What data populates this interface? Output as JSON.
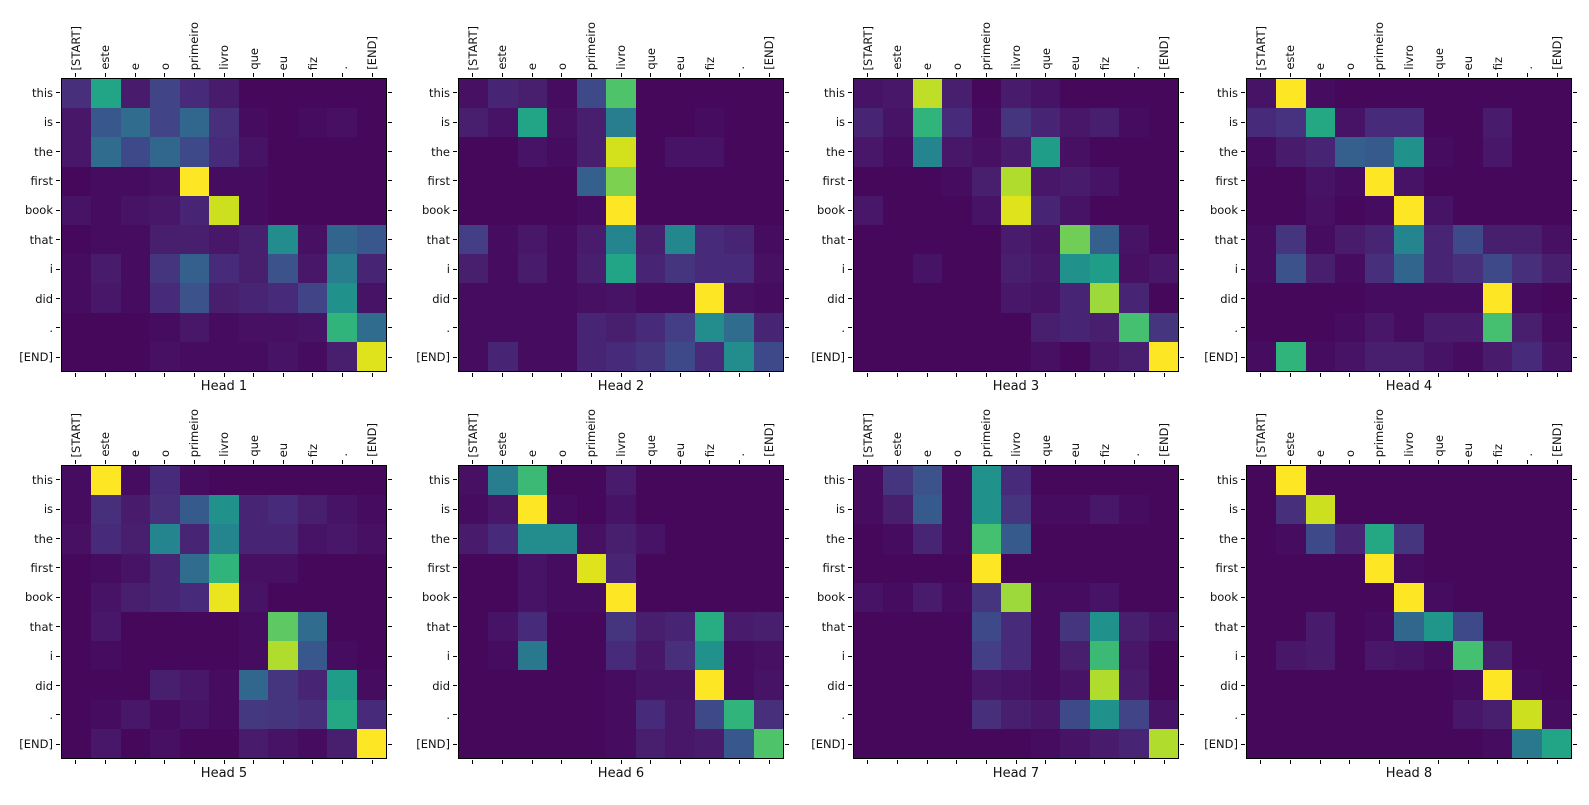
{
  "figure": {
    "background": "#ffffff",
    "plot_background": "#440154",
    "spine_color": "#000000",
    "text_color": "#111111"
  },
  "chart_data": {
    "type": "heatmap",
    "colormap": "viridis",
    "value_range": [
      0,
      1
    ],
    "legend": "none",
    "grid": "off",
    "x_tokens": [
      "[START]",
      "este",
      "e",
      "o",
      "primeiro",
      "livro",
      "que",
      "eu",
      "fiz",
      ".",
      "[END]"
    ],
    "y_tokens": [
      "this",
      "is",
      "the",
      "first",
      "book",
      "that",
      "i",
      "did",
      ".",
      "[END]"
    ],
    "viridis_stops": [
      "#440154",
      "#48186a",
      "#472d7b",
      "#424086",
      "#3b528b",
      "#33638d",
      "#2c728e",
      "#26828e",
      "#21918c",
      "#1fa088",
      "#28ae80",
      "#3fbc73",
      "#5ec962",
      "#84d44b",
      "#addc30",
      "#d8e219",
      "#fde725"
    ],
    "heads": [
      {
        "title": "Head 1",
        "values": [
          [
            0.13,
            0.58,
            0.07,
            0.2,
            0.12,
            0.07,
            0.02,
            0.02,
            0.02,
            0.02,
            0.02
          ],
          [
            0.06,
            0.27,
            0.35,
            0.2,
            0.33,
            0.13,
            0.03,
            0.02,
            0.03,
            0.04,
            0.02
          ],
          [
            0.06,
            0.35,
            0.22,
            0.33,
            0.22,
            0.12,
            0.05,
            0.02,
            0.02,
            0.02,
            0.02
          ],
          [
            0.02,
            0.03,
            0.03,
            0.04,
            1.0,
            0.03,
            0.03,
            0.02,
            0.02,
            0.02,
            0.02
          ],
          [
            0.05,
            0.03,
            0.05,
            0.06,
            0.1,
            0.92,
            0.03,
            0.02,
            0.02,
            0.02,
            0.02
          ],
          [
            0.02,
            0.03,
            0.03,
            0.08,
            0.08,
            0.06,
            0.08,
            0.48,
            0.04,
            0.32,
            0.27
          ],
          [
            0.03,
            0.07,
            0.03,
            0.15,
            0.3,
            0.12,
            0.08,
            0.25,
            0.06,
            0.42,
            0.1
          ],
          [
            0.03,
            0.06,
            0.03,
            0.12,
            0.25,
            0.08,
            0.1,
            0.12,
            0.2,
            0.5,
            0.05
          ],
          [
            0.02,
            0.02,
            0.02,
            0.03,
            0.06,
            0.03,
            0.04,
            0.04,
            0.05,
            0.65,
            0.35
          ],
          [
            0.02,
            0.02,
            0.02,
            0.04,
            0.03,
            0.03,
            0.03,
            0.05,
            0.03,
            0.08,
            0.95
          ]
        ]
      },
      {
        "title": "Head 2",
        "values": [
          [
            0.04,
            0.1,
            0.08,
            0.03,
            0.22,
            0.72,
            0.02,
            0.02,
            0.02,
            0.02,
            0.02
          ],
          [
            0.08,
            0.05,
            0.58,
            0.04,
            0.08,
            0.42,
            0.02,
            0.02,
            0.03,
            0.02,
            0.02
          ],
          [
            0.02,
            0.02,
            0.05,
            0.03,
            0.08,
            0.93,
            0.02,
            0.05,
            0.05,
            0.02,
            0.02
          ],
          [
            0.02,
            0.02,
            0.02,
            0.02,
            0.3,
            0.8,
            0.02,
            0.02,
            0.02,
            0.02,
            0.02
          ],
          [
            0.02,
            0.02,
            0.02,
            0.02,
            0.03,
            1.0,
            0.02,
            0.02,
            0.02,
            0.02,
            0.02
          ],
          [
            0.18,
            0.03,
            0.06,
            0.03,
            0.07,
            0.45,
            0.08,
            0.46,
            0.12,
            0.1,
            0.03
          ],
          [
            0.08,
            0.03,
            0.07,
            0.03,
            0.08,
            0.58,
            0.1,
            0.15,
            0.12,
            0.12,
            0.04
          ],
          [
            0.03,
            0.03,
            0.03,
            0.03,
            0.04,
            0.05,
            0.03,
            0.03,
            1.0,
            0.04,
            0.03
          ],
          [
            0.03,
            0.03,
            0.03,
            0.03,
            0.1,
            0.08,
            0.12,
            0.18,
            0.48,
            0.35,
            0.1
          ],
          [
            0.03,
            0.1,
            0.03,
            0.03,
            0.1,
            0.12,
            0.15,
            0.22,
            0.12,
            0.48,
            0.22
          ]
        ]
      },
      {
        "title": "Head 3",
        "values": [
          [
            0.05,
            0.06,
            0.9,
            0.08,
            0.02,
            0.07,
            0.05,
            0.02,
            0.02,
            0.02,
            0.02
          ],
          [
            0.1,
            0.05,
            0.65,
            0.12,
            0.03,
            0.15,
            0.1,
            0.06,
            0.08,
            0.03,
            0.02
          ],
          [
            0.06,
            0.03,
            0.45,
            0.06,
            0.04,
            0.07,
            0.55,
            0.04,
            0.02,
            0.02,
            0.02
          ],
          [
            0.02,
            0.02,
            0.02,
            0.03,
            0.08,
            0.88,
            0.06,
            0.07,
            0.05,
            0.02,
            0.02
          ],
          [
            0.06,
            0.02,
            0.02,
            0.02,
            0.05,
            0.95,
            0.1,
            0.05,
            0.02,
            0.02,
            0.02
          ],
          [
            0.02,
            0.02,
            0.02,
            0.02,
            0.02,
            0.07,
            0.05,
            0.78,
            0.3,
            0.05,
            0.02
          ],
          [
            0.02,
            0.02,
            0.05,
            0.02,
            0.02,
            0.08,
            0.06,
            0.5,
            0.55,
            0.04,
            0.06
          ],
          [
            0.02,
            0.02,
            0.02,
            0.02,
            0.02,
            0.06,
            0.05,
            0.1,
            0.85,
            0.1,
            0.02
          ],
          [
            0.02,
            0.02,
            0.02,
            0.02,
            0.02,
            0.02,
            0.08,
            0.1,
            0.08,
            0.7,
            0.15
          ],
          [
            0.02,
            0.02,
            0.02,
            0.02,
            0.02,
            0.02,
            0.04,
            0.02,
            0.06,
            0.08,
            1.0
          ]
        ]
      },
      {
        "title": "Head 4",
        "values": [
          [
            0.05,
            1.0,
            0.03,
            0.02,
            0.02,
            0.02,
            0.02,
            0.02,
            0.02,
            0.02,
            0.02
          ],
          [
            0.12,
            0.14,
            0.6,
            0.05,
            0.12,
            0.12,
            0.02,
            0.02,
            0.07,
            0.02,
            0.02
          ],
          [
            0.03,
            0.07,
            0.1,
            0.3,
            0.28,
            0.5,
            0.03,
            0.02,
            0.06,
            0.02,
            0.02
          ],
          [
            0.02,
            0.02,
            0.05,
            0.03,
            1.0,
            0.05,
            0.02,
            0.02,
            0.02,
            0.02,
            0.02
          ],
          [
            0.02,
            0.02,
            0.04,
            0.02,
            0.03,
            1.0,
            0.05,
            0.02,
            0.02,
            0.02,
            0.02
          ],
          [
            0.03,
            0.15,
            0.03,
            0.07,
            0.1,
            0.45,
            0.1,
            0.22,
            0.08,
            0.08,
            0.04
          ],
          [
            0.03,
            0.25,
            0.08,
            0.03,
            0.13,
            0.32,
            0.1,
            0.13,
            0.22,
            0.13,
            0.08
          ],
          [
            0.02,
            0.02,
            0.02,
            0.02,
            0.03,
            0.03,
            0.03,
            0.03,
            1.0,
            0.03,
            0.02
          ],
          [
            0.02,
            0.02,
            0.02,
            0.03,
            0.06,
            0.03,
            0.07,
            0.07,
            0.7,
            0.08,
            0.03
          ],
          [
            0.03,
            0.65,
            0.03,
            0.05,
            0.08,
            0.08,
            0.05,
            0.03,
            0.07,
            0.12,
            0.05
          ]
        ]
      },
      {
        "title": "Head 5",
        "values": [
          [
            0.03,
            1.0,
            0.03,
            0.12,
            0.03,
            0.02,
            0.02,
            0.02,
            0.02,
            0.02,
            0.02
          ],
          [
            0.03,
            0.13,
            0.07,
            0.13,
            0.28,
            0.5,
            0.1,
            0.12,
            0.08,
            0.05,
            0.03
          ],
          [
            0.04,
            0.12,
            0.08,
            0.45,
            0.1,
            0.45,
            0.1,
            0.1,
            0.05,
            0.06,
            0.04
          ],
          [
            0.02,
            0.03,
            0.05,
            0.1,
            0.35,
            0.65,
            0.04,
            0.04,
            0.02,
            0.02,
            0.02
          ],
          [
            0.02,
            0.05,
            0.08,
            0.1,
            0.12,
            0.97,
            0.05,
            0.02,
            0.02,
            0.02,
            0.02
          ],
          [
            0.02,
            0.06,
            0.02,
            0.02,
            0.02,
            0.02,
            0.03,
            0.75,
            0.35,
            0.02,
            0.02
          ],
          [
            0.02,
            0.03,
            0.02,
            0.02,
            0.02,
            0.02,
            0.03,
            0.88,
            0.27,
            0.03,
            0.02
          ],
          [
            0.02,
            0.02,
            0.02,
            0.08,
            0.06,
            0.03,
            0.33,
            0.15,
            0.1,
            0.55,
            0.03
          ],
          [
            0.02,
            0.03,
            0.06,
            0.03,
            0.05,
            0.03,
            0.16,
            0.15,
            0.13,
            0.6,
            0.12
          ],
          [
            0.02,
            0.06,
            0.02,
            0.04,
            0.02,
            0.02,
            0.07,
            0.05,
            0.03,
            0.08,
            1.0
          ]
        ]
      },
      {
        "title": "Head 6",
        "values": [
          [
            0.04,
            0.42,
            0.68,
            0.02,
            0.02,
            0.07,
            0.02,
            0.02,
            0.02,
            0.02,
            0.02
          ],
          [
            0.03,
            0.06,
            1.0,
            0.03,
            0.02,
            0.05,
            0.02,
            0.02,
            0.02,
            0.02,
            0.02
          ],
          [
            0.07,
            0.12,
            0.48,
            0.48,
            0.04,
            0.08,
            0.05,
            0.02,
            0.02,
            0.02,
            0.02
          ],
          [
            0.02,
            0.02,
            0.05,
            0.03,
            0.95,
            0.1,
            0.02,
            0.02,
            0.02,
            0.02,
            0.02
          ],
          [
            0.02,
            0.02,
            0.05,
            0.03,
            0.03,
            1.0,
            0.02,
            0.02,
            0.02,
            0.02,
            0.02
          ],
          [
            0.02,
            0.05,
            0.12,
            0.02,
            0.02,
            0.15,
            0.08,
            0.1,
            0.62,
            0.07,
            0.08
          ],
          [
            0.02,
            0.03,
            0.4,
            0.02,
            0.02,
            0.12,
            0.06,
            0.13,
            0.5,
            0.03,
            0.04
          ],
          [
            0.02,
            0.02,
            0.02,
            0.02,
            0.02,
            0.03,
            0.05,
            0.05,
            1.0,
            0.03,
            0.05
          ],
          [
            0.02,
            0.02,
            0.02,
            0.02,
            0.02,
            0.03,
            0.12,
            0.06,
            0.22,
            0.65,
            0.13
          ],
          [
            0.02,
            0.02,
            0.02,
            0.02,
            0.02,
            0.03,
            0.08,
            0.06,
            0.07,
            0.27,
            0.72
          ]
        ]
      },
      {
        "title": "Head 7",
        "values": [
          [
            0.03,
            0.15,
            0.25,
            0.03,
            0.5,
            0.12,
            0.02,
            0.02,
            0.02,
            0.02,
            0.02
          ],
          [
            0.03,
            0.08,
            0.28,
            0.03,
            0.5,
            0.15,
            0.03,
            0.03,
            0.06,
            0.03,
            0.02
          ],
          [
            0.02,
            0.03,
            0.1,
            0.03,
            0.7,
            0.28,
            0.02,
            0.02,
            0.02,
            0.02,
            0.02
          ],
          [
            0.02,
            0.02,
            0.02,
            0.02,
            1.0,
            0.02,
            0.02,
            0.02,
            0.02,
            0.02,
            0.02
          ],
          [
            0.05,
            0.03,
            0.07,
            0.03,
            0.15,
            0.85,
            0.03,
            0.03,
            0.05,
            0.02,
            0.02
          ],
          [
            0.02,
            0.02,
            0.02,
            0.02,
            0.22,
            0.12,
            0.03,
            0.15,
            0.5,
            0.08,
            0.05
          ],
          [
            0.02,
            0.02,
            0.02,
            0.02,
            0.18,
            0.12,
            0.03,
            0.08,
            0.68,
            0.06,
            0.02
          ],
          [
            0.02,
            0.02,
            0.02,
            0.02,
            0.06,
            0.05,
            0.03,
            0.05,
            0.88,
            0.07,
            0.02
          ],
          [
            0.02,
            0.02,
            0.02,
            0.02,
            0.13,
            0.08,
            0.06,
            0.22,
            0.5,
            0.2,
            0.05
          ],
          [
            0.02,
            0.02,
            0.02,
            0.02,
            0.02,
            0.02,
            0.03,
            0.05,
            0.07,
            0.1,
            0.88
          ]
        ]
      },
      {
        "title": "Head 8",
        "values": [
          [
            0.02,
            1.0,
            0.02,
            0.02,
            0.02,
            0.02,
            0.02,
            0.02,
            0.02,
            0.02,
            0.02
          ],
          [
            0.02,
            0.13,
            0.92,
            0.02,
            0.02,
            0.02,
            0.02,
            0.02,
            0.02,
            0.02,
            0.02
          ],
          [
            0.02,
            0.03,
            0.22,
            0.1,
            0.6,
            0.15,
            0.02,
            0.02,
            0.02,
            0.02,
            0.02
          ],
          [
            0.02,
            0.02,
            0.02,
            0.02,
            1.0,
            0.03,
            0.02,
            0.02,
            0.02,
            0.02,
            0.02
          ],
          [
            0.02,
            0.02,
            0.02,
            0.02,
            0.02,
            1.0,
            0.03,
            0.02,
            0.02,
            0.02,
            0.02
          ],
          [
            0.02,
            0.02,
            0.07,
            0.02,
            0.03,
            0.33,
            0.52,
            0.22,
            0.02,
            0.02,
            0.02
          ],
          [
            0.02,
            0.06,
            0.07,
            0.02,
            0.06,
            0.05,
            0.03,
            0.7,
            0.08,
            0.02,
            0.02
          ],
          [
            0.02,
            0.02,
            0.02,
            0.02,
            0.02,
            0.02,
            0.02,
            0.03,
            1.0,
            0.03,
            0.02
          ],
          [
            0.02,
            0.02,
            0.02,
            0.02,
            0.02,
            0.02,
            0.02,
            0.06,
            0.08,
            0.92,
            0.03
          ],
          [
            0.02,
            0.02,
            0.02,
            0.02,
            0.02,
            0.02,
            0.02,
            0.02,
            0.03,
            0.4,
            0.58
          ]
        ]
      }
    ]
  }
}
